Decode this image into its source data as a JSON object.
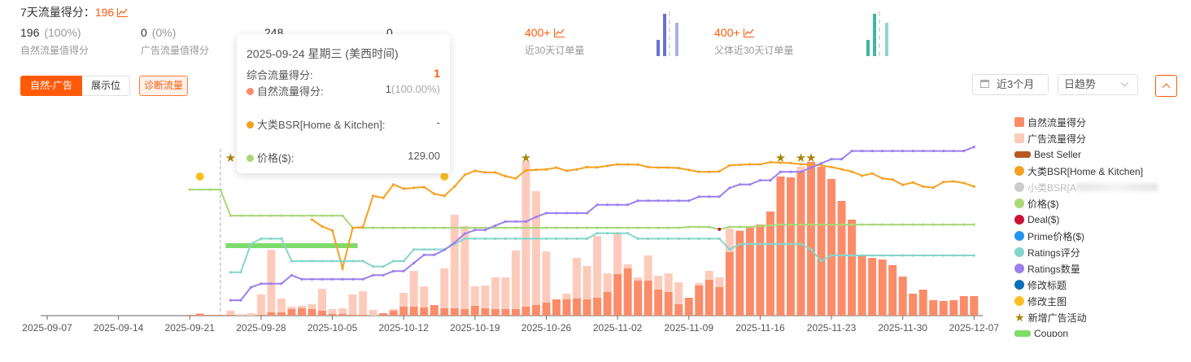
{
  "header": {
    "title": "7天流量得分：",
    "score": "196"
  },
  "stats": [
    {
      "value": "196",
      "pct": "(100%)",
      "label": "自然流量值得分"
    },
    {
      "value": "0",
      "pct": "(0%)",
      "label": "广告流量值得分"
    },
    {
      "value": "248"
    },
    {
      "value": "0"
    },
    {
      "value": "400+",
      "label": "近30天订单量"
    },
    {
      "value": "400+",
      "label": "父体近30天订单量"
    }
  ],
  "controls": {
    "seg_active": "自然-广告",
    "seg_other": "展示位",
    "diagnose": "诊断流量",
    "date_range": "近3个月",
    "granularity": "日趋势"
  },
  "colors": {
    "accent": "#ff5a0a",
    "natural": "#fb8c6a",
    "ad": "#fdcbbb",
    "bsr": "#f5a020",
    "price": "#a8d878",
    "rating": "#85d5cc",
    "ratings_count": "#9b7ff0",
    "star": "#a8860a",
    "main_image": "#fbbf24",
    "deal": "#cc1238",
    "coupon": "#7ddc6a"
  },
  "legend": [
    {
      "label": "自然流量得分",
      "shape": "square",
      "color": "#fb8c6a"
    },
    {
      "label": "广告流量得分",
      "shape": "square",
      "color": "#fdcbbb"
    },
    {
      "label": "Best Seller",
      "shape": "rect",
      "color": "#b45a22"
    },
    {
      "label": "大类BSR[Home & Kitchen]",
      "shape": "circle",
      "color": "#f5a020"
    },
    {
      "label": "小类BSR[A",
      "shape": "circle",
      "color": "#cccccc",
      "dim": true
    },
    {
      "label": "价格($)",
      "shape": "circle",
      "color": "#a8d878"
    },
    {
      "label": "Deal($)",
      "shape": "circle",
      "color": "#cc1238"
    },
    {
      "label": "Prime价格($)",
      "shape": "circle",
      "color": "#2196f3"
    },
    {
      "label": "Ratings评分",
      "shape": "circle",
      "color": "#85d5cc"
    },
    {
      "label": "Ratings数量",
      "shape": "circle",
      "color": "#9b7ff0"
    },
    {
      "label": "修改标题",
      "shape": "circle",
      "color": "#0b6fb8"
    },
    {
      "label": "修改主图",
      "shape": "circle",
      "color": "#fbbf24"
    },
    {
      "label": "新增广告活动",
      "shape": "star",
      "color": "#a8860a"
    },
    {
      "label": "Coupon",
      "shape": "rect",
      "color": "#7ddc6a"
    }
  ],
  "tooltip": {
    "date": "2025-09-24 星期三 (美西时间)",
    "total_label": "综合流量得分:",
    "total_value": "1",
    "natural_label": "自然流量得分:",
    "natural_value": "1",
    "natural_pct": "(100.00%)",
    "bsr_label": "大类BSR[Home & Kitchen]:",
    "bsr_value": "-",
    "price_label": "价格($):",
    "price_value": "129.00"
  },
  "chart_data": {
    "type": "bar",
    "title": "",
    "x_axis_start": "2025-09-07",
    "x_ticks": [
      "2025-09-07",
      "2025-09-14",
      "2025-09-21",
      "2025-09-28",
      "2025-10-05",
      "2025-10-12",
      "2025-10-19",
      "2025-10-26",
      "2025-11-02",
      "2025-11-09",
      "2025-11-16",
      "2025-11-23",
      "2025-11-30",
      "2025-12-07"
    ],
    "bars_start": "2025-09-21",
    "series": [
      {
        "name": "自然流量得分",
        "stack": "score",
        "values": [
          1,
          2,
          1,
          1,
          1,
          0,
          0,
          1,
          4,
          4,
          8,
          9,
          8,
          6,
          2,
          2,
          1,
          1,
          0,
          3,
          6,
          11,
          11,
          10,
          13,
          9,
          9,
          8,
          12,
          9,
          8,
          8,
          8,
          11,
          13,
          16,
          20,
          20,
          21,
          20,
          22,
          29,
          51,
          58,
          43,
          43,
          32,
          29,
          14,
          22,
          37,
          44,
          35,
          78,
          104,
          109,
          112,
          128,
          171,
          170,
          177,
          189,
          183,
          168,
          141,
          118,
          73,
          71,
          69,
          62,
          48,
          27,
          32,
          19,
          18,
          19,
          24,
          24
        ]
      },
      {
        "name": "广告流量得分",
        "stack": "score",
        "values": [
          0,
          1,
          0,
          0,
          5,
          2,
          3,
          25,
          77,
          17,
          3,
          3,
          6,
          27,
          6,
          7,
          25,
          29,
          7,
          0,
          2,
          17,
          44,
          26,
          0,
          49,
          115,
          102,
          24,
          28,
          39,
          39,
          72,
          179,
          140,
          63,
          0,
          7,
          50,
          41,
          76,
          23,
          51,
          5,
          4,
          31,
          17,
          23,
          27,
          0,
          3,
          11,
          12,
          29,
          1,
          0,
          0,
          0,
          0,
          0,
          6,
          0,
          0,
          0,
          0,
          0,
          0,
          0,
          0,
          0,
          0,
          0,
          0,
          0,
          0,
          0,
          0,
          0
        ]
      }
    ],
    "lines_note": "relative level 0-100 (no y-axis shown)",
    "lines": [
      {
        "name": "价格($)",
        "start": "2025-09-21",
        "values": [
          74.5,
          74.5,
          74.5,
          74.5,
          59.1,
          59.1,
          59.1,
          59.1,
          59.1,
          59.1,
          59.1,
          59.1,
          59.1,
          59.1,
          59.1,
          59.1,
          51.9,
          51.9,
          51.9,
          51.9,
          51.9,
          51.9,
          51.9,
          51.9,
          51.9,
          51.9,
          51.9,
          51.9,
          51.9,
          51.9,
          51.9,
          51.9,
          51.9,
          51.9,
          51.9,
          51.9,
          51.9,
          51.9,
          51.9,
          51.9,
          51.9,
          51.9,
          51.9,
          51.9,
          51.9,
          51.9,
          51.9,
          51.9,
          51.9,
          52.4,
          52.4,
          52.4,
          51,
          52.4,
          52.4,
          52.4,
          53,
          53.4,
          53.8,
          53.8,
          53.8,
          53.8,
          53.8,
          53.8,
          53.8,
          53.8,
          53.8,
          53.8,
          53.8,
          53.8,
          53.8,
          53.8,
          53.8,
          53.8,
          53.8,
          53.8,
          53.8,
          53.8
        ]
      },
      {
        "name": "大类BSR[Home & Kitchen]",
        "start": "2025-10-03",
        "values": [
          56.7,
          52.7,
          50.3,
          27.9,
          51.9,
          52.3,
          70.8,
          69.6,
          77.5,
          75,
          75.5,
          76,
          72,
          70.8,
          76.3,
          83.2,
          85.6,
          84.6,
          84.6,
          82.4,
          81.1,
          85.9,
          86.2,
          86.4,
          87.5,
          85.6,
          86.4,
          87.8,
          87.6,
          88.5,
          89.4,
          89.3,
          89.3,
          87.8,
          87.5,
          87.5,
          87.2,
          86.1,
          85,
          85,
          85.2,
          88.8,
          89.1,
          89.4,
          89.4,
          90.7,
          90.4,
          90.2,
          89.4,
          89.3,
          88.8,
          87.8,
          86.5,
          85.1,
          82.7,
          84,
          81.1,
          80.4,
          77.3,
          78.7,
          76.3,
          75.6,
          79,
          79.3,
          78.4,
          76.3
        ]
      },
      {
        "name": "Ratings评分",
        "start": "2025-09-25",
        "values": [
          25.6,
          25.6,
          42.3,
          45.5,
          45.5,
          45.5,
          32.2,
          32.2,
          32.2,
          32.2,
          32.2,
          32.2,
          32.2,
          32.2,
          29,
          29,
          32.2,
          32.2,
          39.1,
          39.1,
          39.1,
          39.1,
          42.3,
          45.5,
          45.5,
          45.5,
          45.5,
          45.5,
          45.5,
          45.5,
          45.5,
          45.5,
          45.5,
          45.5,
          45.5,
          45.5,
          48.7,
          48.7,
          48.7,
          48.7,
          45.5,
          45.5,
          45.5,
          45.5,
          45.5,
          45.5,
          45.5,
          45.5,
          45.5,
          39.1,
          42.3,
          42.3,
          42.3,
          42.3,
          42.3,
          42.3,
          42.3,
          39.1,
          32.2,
          35.6,
          35.6,
          35.6,
          35.6,
          35.6,
          35.6,
          35.6,
          35.6,
          35.6,
          35.6,
          35.6,
          35.6,
          35.6,
          35.6,
          35.6
        ]
      },
      {
        "name": "Ratings数量",
        "start": "2025-09-25",
        "values": [
          9.1,
          9.1,
          16.7,
          18.9,
          18.9,
          18.9,
          23.9,
          21.5,
          21.5,
          21.5,
          21.5,
          21.5,
          21.5,
          21.5,
          23.9,
          23.9,
          26.3,
          26.3,
          31.1,
          35.9,
          35.9,
          38.8,
          43.1,
          48.4,
          50.6,
          50.6,
          53.2,
          55.6,
          55.6,
          55.6,
          58.3,
          60.6,
          60.6,
          60.6,
          60.6,
          60.6,
          65.5,
          65.5,
          65.5,
          65.5,
          67.9,
          67.9,
          67.9,
          67.9,
          67.9,
          67.9,
          70.3,
          70.3,
          70.3,
          75.5,
          77.5,
          77.5,
          80,
          80,
          85,
          85,
          85,
          87.5,
          90,
          92.5,
          92.5,
          97.3,
          97.3,
          97.3,
          97.3,
          97.3,
          97.3,
          97.3,
          97.3,
          97.3,
          97.3,
          97.3,
          97.3,
          99.7
        ]
      }
    ],
    "events": {
      "新增广告活动": [
        "2025-09-25",
        "2025-10-16",
        "2025-10-24",
        "2025-11-18",
        "2025-11-20",
        "2025-11-21"
      ],
      "修改主图": [
        "2025-09-22",
        "2025-10-16"
      ],
      "Deal($)": [
        "2025-11-12"
      ],
      "Coupon": {
        "start": "2025-09-25",
        "end": "2025-10-07"
      }
    },
    "hover_date": "2025-09-24"
  }
}
